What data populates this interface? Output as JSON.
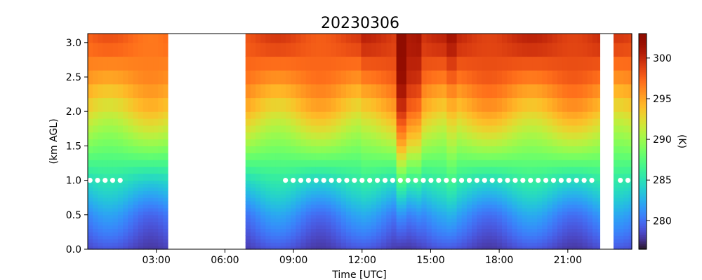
{
  "chart_data": {
    "type": "heatmap",
    "title": "20230306",
    "xlabel": "Time [UTC]",
    "ylabel": "(km AGL)",
    "colorbar_label": "(K)",
    "colormap": "turbo",
    "xlim": [
      0.0,
      23.8
    ],
    "ylim": [
      0.0,
      3.13
    ],
    "clim": [
      276.5,
      303.0
    ],
    "grid": false,
    "x_ticks": [
      3,
      6,
      9,
      12,
      15,
      18,
      21
    ],
    "x_tick_labels": [
      "03:00",
      "06:00",
      "09:00",
      "12:00",
      "15:00",
      "18:00",
      "21:00"
    ],
    "y_ticks": [
      0.0,
      0.5,
      1.0,
      1.5,
      2.0,
      2.5,
      3.0
    ],
    "y_tick_labels": [
      "0.0",
      "0.5",
      "1.0",
      "1.5",
      "2.0",
      "2.5",
      "3.0"
    ],
    "colorbar_ticks": [
      280,
      285,
      290,
      295,
      300
    ],
    "colorbar_tick_labels": [
      "280",
      "285",
      "290",
      "295",
      "300"
    ],
    "data_segments": [
      {
        "start": 0.0,
        "end": 3.5
      },
      {
        "start": 6.9,
        "end": 22.4
      },
      {
        "start": 23.0,
        "end": 23.8
      }
    ],
    "temperature_profile": {
      "heights_km": [
        0.0,
        0.5,
        1.0,
        1.5,
        2.0,
        2.5,
        3.0
      ],
      "values_K": [
        278.5,
        281.0,
        285.0,
        289.5,
        293.5,
        296.5,
        298.5
      ]
    },
    "warm_anomalies": [
      {
        "time": 13.65,
        "delta_K": 4.0
      },
      {
        "time": 14.25,
        "delta_K": 2.0
      },
      {
        "time": 15.9,
        "delta_K": 1.0
      }
    ],
    "marker_series": {
      "height_km": 1.0,
      "color": "#ffffff",
      "segments": [
        {
          "start": 0.1,
          "end": 1.7,
          "step": 0.33
        },
        {
          "start": 8.65,
          "end": 22.1,
          "step": 0.335
        },
        {
          "start": 23.3,
          "end": 23.8,
          "step": 0.33
        }
      ]
    }
  }
}
